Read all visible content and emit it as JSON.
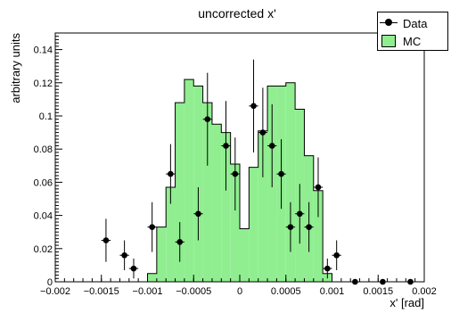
{
  "chart_data": {
    "type": "bar",
    "title": "uncorrected x'",
    "xlabel": "x' [rad]",
    "ylabel": "arbitrary units",
    "xlim": [
      -0.002,
      0.002
    ],
    "ylim": [
      0,
      0.15
    ],
    "xticks": [
      "−0.002",
      "−0.0015",
      "−0.001",
      "−0.0005",
      "0",
      "0.0005",
      "0.001",
      "0.0015",
      "0.002"
    ],
    "xtick_values": [
      -0.002,
      -0.0015,
      -0.001,
      -0.0005,
      0,
      0.0005,
      0.001,
      0.0015,
      0.002
    ],
    "yticks": [
      "0",
      "0.02",
      "0.04",
      "0.06",
      "0.08",
      "0.1",
      "0.12",
      "0.14"
    ],
    "ytick_values": [
      0,
      0.02,
      0.04,
      0.06,
      0.08,
      0.1,
      0.12,
      0.14
    ],
    "bin_width": 0.0001,
    "mc": {
      "name": "MC",
      "color": "#90ee90",
      "bin_edges": [
        -0.001,
        -0.0009,
        -0.0008,
        -0.0007,
        -0.0006,
        -0.0005,
        -0.0004,
        -0.0003,
        -0.0002,
        -0.0001,
        0.0,
        0.0001,
        0.0002,
        0.0003,
        0.0004,
        0.0005,
        0.0006,
        0.0007,
        0.0008,
        0.0009,
        0.001
      ],
      "values": [
        0.005,
        0.033,
        0.057,
        0.108,
        0.122,
        0.118,
        0.108,
        0.095,
        0.09,
        0.071,
        0.032,
        0.069,
        0.091,
        0.118,
        0.118,
        0.12,
        0.104,
        0.076,
        0.055,
        0.005
      ]
    },
    "data": {
      "name": "Data",
      "color": "#000000",
      "x": [
        -0.00145,
        -0.00125,
        -0.00115,
        -0.00095,
        -0.00075,
        -0.00065,
        -0.00045,
        -0.00035,
        -0.00015,
        -5e-05,
        0.00015,
        0.00025,
        0.00035,
        0.00045,
        0.00055,
        0.00065,
        0.00075,
        0.00085,
        0.00095,
        0.00105,
        0.00125,
        0.00155,
        0.00185
      ],
      "y": [
        0.025,
        0.016,
        0.008,
        0.033,
        0.065,
        0.024,
        0.041,
        0.098,
        0.082,
        0.065,
        0.106,
        0.09,
        0.082,
        0.065,
        0.033,
        0.041,
        0.033,
        0.057,
        0.008,
        0.016,
        0.0,
        0.0,
        0.0
      ],
      "yerr": [
        0.013,
        0.009,
        0.006,
        0.015,
        0.018,
        0.012,
        0.016,
        0.028,
        0.027,
        0.022,
        0.028,
        0.027,
        0.025,
        0.021,
        0.015,
        0.018,
        0.015,
        0.018,
        0.006,
        0.009,
        0,
        0,
        0
      ]
    }
  },
  "legend": {
    "data_label": "Data",
    "mc_label": "MC"
  }
}
